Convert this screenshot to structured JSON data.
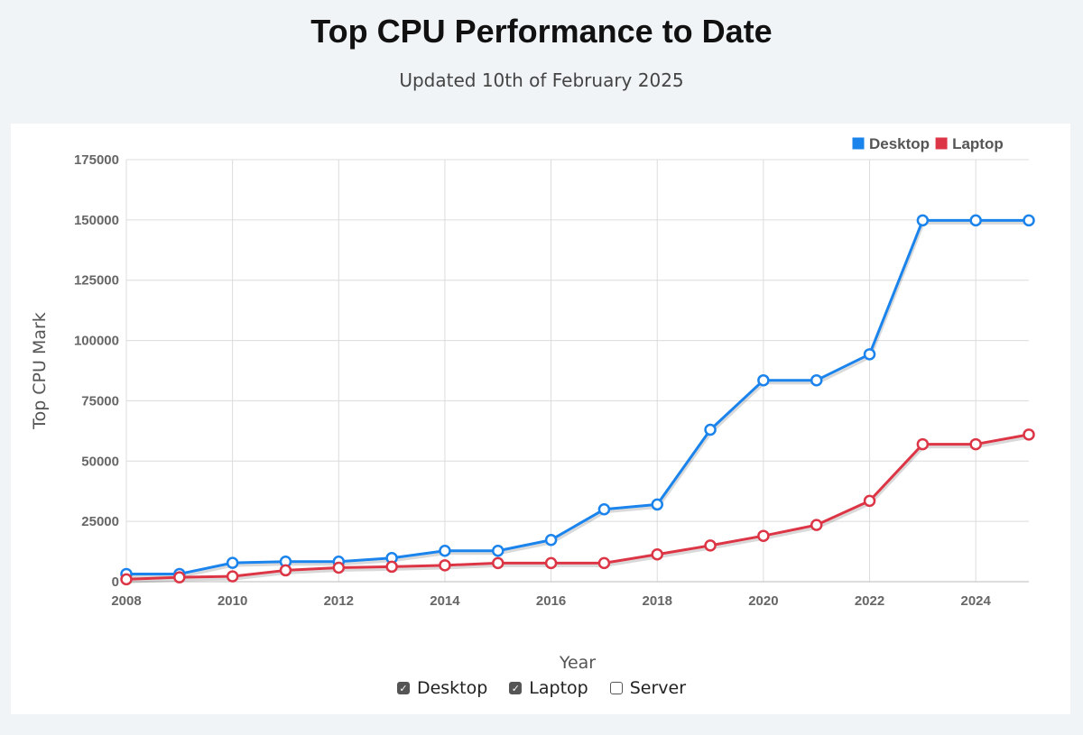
{
  "page": {
    "title": "Top CPU Performance to Date",
    "subtitle": "Updated 10th of February 2025"
  },
  "chart_data": {
    "type": "line",
    "xlabel": "Year",
    "ylabel": "Top CPU Mark",
    "xlim": [
      2008,
      2025
    ],
    "ylim": [
      0,
      175000
    ],
    "x_ticks": [
      2008,
      2010,
      2012,
      2014,
      2016,
      2018,
      2020,
      2022,
      2024
    ],
    "y_ticks": [
      0,
      25000,
      50000,
      75000,
      100000,
      125000,
      150000,
      175000
    ],
    "grid": true,
    "legend_position": "top-right",
    "x": [
      2008,
      2009,
      2010,
      2011,
      2012,
      2013,
      2014,
      2015,
      2016,
      2017,
      2018,
      2019,
      2020,
      2021,
      2022,
      2023,
      2024,
      2025
    ],
    "series": [
      {
        "name": "Desktop",
        "color": "#1a83ec",
        "values": [
          3200,
          3200,
          7800,
          8300,
          8300,
          9800,
          12800,
          12800,
          17300,
          30000,
          32000,
          63000,
          83500,
          83500,
          94300,
          149800,
          149800,
          149800
        ]
      },
      {
        "name": "Laptop",
        "color": "#dc3545",
        "values": [
          1000,
          1800,
          2200,
          4700,
          5800,
          6200,
          6800,
          7700,
          7700,
          7700,
          11300,
          15000,
          19000,
          23500,
          33500,
          57000,
          57000,
          61000
        ]
      }
    ]
  },
  "toggles": [
    {
      "label": "Desktop",
      "checked": true
    },
    {
      "label": "Laptop",
      "checked": true
    },
    {
      "label": "Server",
      "checked": false
    }
  ]
}
